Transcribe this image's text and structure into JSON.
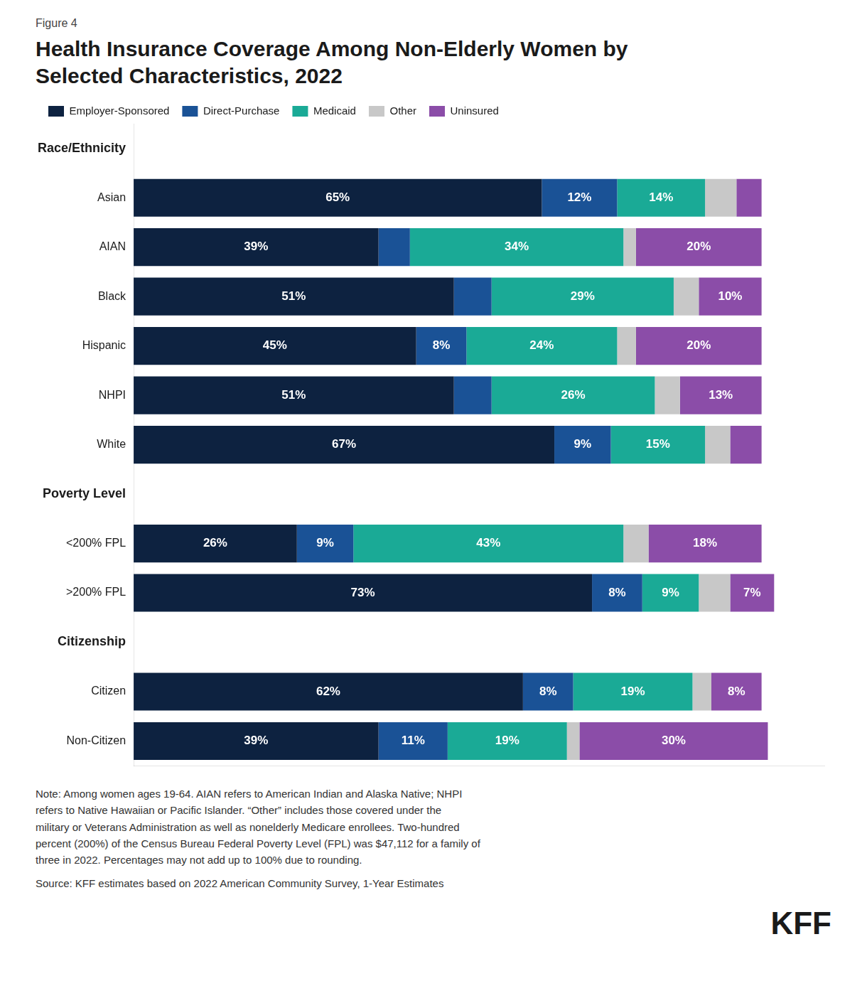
{
  "chart_data": {
    "type": "bar",
    "orientation": "horizontal",
    "stacked": true,
    "subtitle": "Figure 4",
    "title": [
      "Health Insurance Coverage Among Non-Elderly Women by",
      "Selected Characteristics, 2022"
    ],
    "categories": [
      "Race/Ethnicity",
      "Asian",
      "AIAN",
      "Black",
      "Hispanic",
      "NHPI",
      "White",
      "Poverty Level",
      "<200% FPL",
      ">200% FPL",
      "Citizenship",
      "Citizen",
      "Non-Citizen"
    ],
    "series": [
      {
        "name": "Employer-Sponsored",
        "color": "#0d2240",
        "values": [
          null,
          65,
          39,
          51,
          45,
          51,
          67,
          null,
          26,
          73,
          null,
          62,
          39
        ],
        "value_labels": [
          null,
          "65%",
          "39%",
          "51%",
          "45%",
          "51%",
          "67%",
          null,
          "26%",
          "73%",
          null,
          "62%",
          "39%"
        ]
      },
      {
        "name": "Direct-Purchase",
        "color": "#1a5296",
        "values": [
          null,
          12,
          5,
          6,
          8,
          6,
          9,
          null,
          9,
          8,
          null,
          8,
          11
        ],
        "value_labels": [
          null,
          "12%",
          null,
          null,
          "8%",
          null,
          "9%",
          null,
          "9%",
          "8%",
          null,
          "8%",
          "11%"
        ]
      },
      {
        "name": "Medicaid",
        "color": "#1aaa96",
        "values": [
          null,
          14,
          34,
          29,
          24,
          26,
          15,
          null,
          43,
          9,
          null,
          19,
          19
        ],
        "value_labels": [
          null,
          "14%",
          "34%",
          "29%",
          "24%",
          "26%",
          "15%",
          null,
          "43%",
          "9%",
          null,
          "19%",
          "19%"
        ]
      },
      {
        "name": "Other",
        "color": "#c8c8c8",
        "values": [
          null,
          5,
          2,
          4,
          3,
          4,
          4,
          null,
          4,
          5,
          null,
          3,
          2
        ],
        "value_labels": [
          null,
          null,
          null,
          null,
          null,
          null,
          null,
          null,
          null,
          null,
          null,
          null,
          null
        ]
      },
      {
        "name": "Uninsured",
        "color": "#8b4da8",
        "values": [
          null,
          4,
          20,
          10,
          20,
          13,
          5,
          null,
          18,
          7,
          null,
          8,
          30
        ],
        "value_labels": [
          null,
          null,
          "20%",
          "10%",
          "20%",
          "13%",
          null,
          null,
          "18%",
          "7%",
          null,
          "8%",
          "30%"
        ]
      }
    ],
    "xlim": [
      0,
      110
    ],
    "xticks": [
      0,
      10,
      20,
      30,
      40,
      50,
      60,
      70,
      80,
      90,
      100,
      110
    ],
    "grid": false,
    "legend": "top",
    "data_labels": true,
    "tick_labels": "y",
    "annotations": [
      "Note: Among women ages 19-64. AIAN refers to American Indian and Alaska Native; NHPI\nrefers to Native Hawaiian or Pacific Islander. “Other” includes those covered under the\nmilitary or Veterans Administration as well as nonelderly Medicare enrollees. Two-hundred\npercent (200%) of the Census Bureau Federal Poverty Level (FPL) was $47,112 for a family of\nthree in 2022. Percentages may not add up to 100% due to rounding.",
      "Source: KFF estimates based on 2022 American Community Survey, 1-Year Estimates",
      "KFF"
    ]
  }
}
